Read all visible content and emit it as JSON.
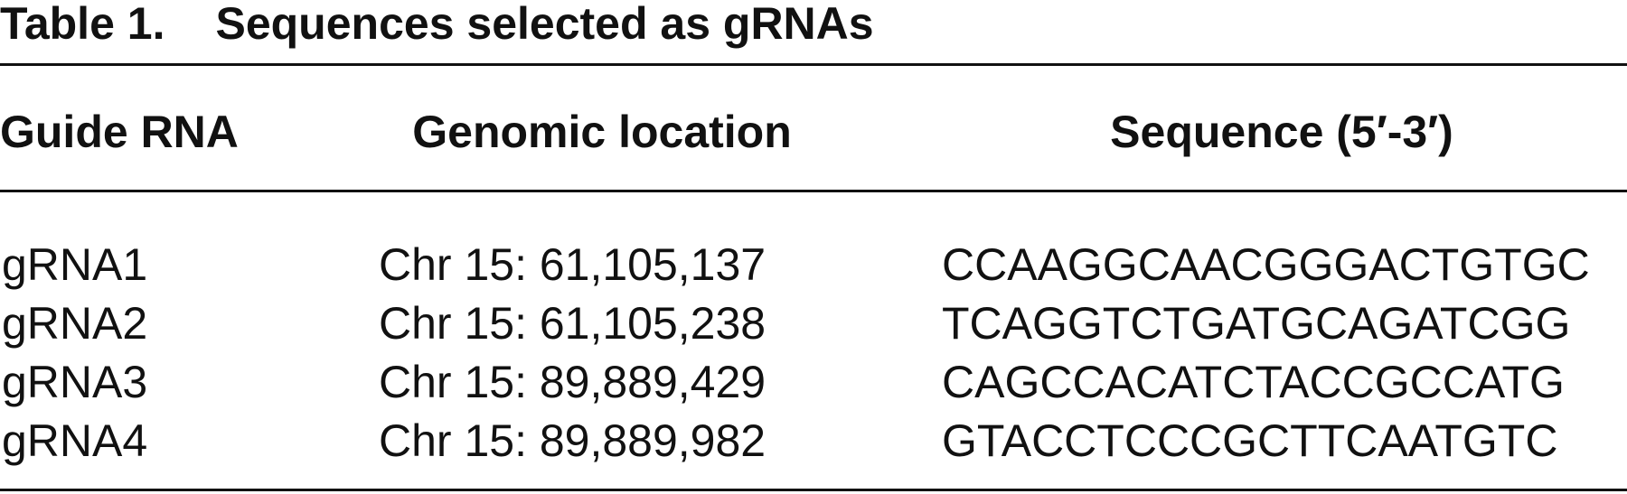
{
  "title": {
    "label": "Table 1.",
    "text": "Sequences selected as gRNAs"
  },
  "table": {
    "columns": [
      "Guide RNA",
      "Genomic location",
      "Sequence (5′-3′)"
    ],
    "rows": [
      [
        "gRNA1",
        "Chr 15: 61,105,137",
        "CCAAGGCAACGGGACTGTGC"
      ],
      [
        "gRNA2",
        "Chr 15: 61,105,238",
        "TCAGGTCTGATGCAGATCGG"
      ],
      [
        "gRNA3",
        "Chr 15: 89,889,429",
        "CAGCCACATCTACCGCCATG"
      ],
      [
        "gRNA4",
        "Chr 15: 89,889,982",
        "GTACCTCCCGCTTCAATGTC"
      ]
    ]
  }
}
